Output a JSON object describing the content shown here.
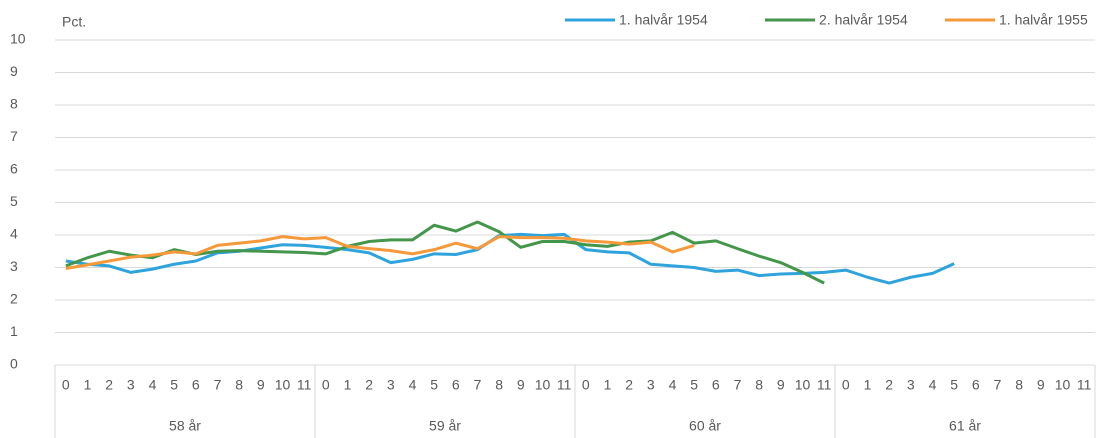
{
  "chart_data": {
    "type": "line",
    "y_label": "Pct.",
    "categories": [
      "0",
      "1",
      "2",
      "3",
      "4",
      "5",
      "6",
      "7",
      "8",
      "9",
      "10",
      "11",
      "0",
      "1",
      "2",
      "3",
      "4",
      "5",
      "6",
      "7",
      "8",
      "9",
      "10",
      "11",
      "0",
      "1",
      "2",
      "3",
      "4",
      "5",
      "6",
      "7",
      "8",
      "9",
      "10",
      "11",
      "0",
      "1",
      "2",
      "3",
      "4",
      "5",
      "6",
      "7",
      "8",
      "9",
      "10",
      "11"
    ],
    "groups": [
      "58 år",
      "59 år",
      "60 år",
      "61 år"
    ],
    "ylim": [
      0,
      10
    ],
    "yticks": [
      0,
      1,
      2,
      3,
      4,
      5,
      6,
      7,
      8,
      9,
      10
    ],
    "grid": true,
    "legend": "top-right",
    "series": [
      {
        "name": "1. halvår 1954",
        "color": "#2ea3dc",
        "values": [
          3.2,
          3.1,
          3.05,
          2.85,
          2.95,
          3.1,
          3.2,
          3.45,
          3.5,
          3.6,
          3.7,
          3.68,
          3.62,
          3.55,
          3.45,
          3.15,
          3.25,
          3.42,
          3.4,
          3.55,
          3.98,
          4.02,
          3.98,
          4.02,
          3.55,
          3.48,
          3.45,
          3.1,
          3.05,
          3.0,
          2.88,
          2.92,
          2.75,
          2.8,
          2.82,
          2.85,
          2.92,
          2.7,
          2.52,
          2.7,
          2.82,
          3.12,
          null,
          null,
          null,
          null,
          null,
          null
        ]
      },
      {
        "name": "2. halvår 1954",
        "color": "#43964a",
        "values": [
          3.05,
          3.3,
          3.5,
          3.38,
          3.3,
          3.55,
          3.4,
          3.5,
          3.52,
          3.5,
          3.48,
          3.46,
          3.42,
          3.65,
          3.8,
          3.85,
          3.85,
          4.3,
          4.12,
          4.4,
          4.1,
          3.62,
          3.8,
          3.8,
          3.7,
          3.65,
          3.78,
          3.82,
          4.08,
          3.75,
          3.82,
          3.58,
          3.35,
          3.15,
          2.85,
          2.52,
          null,
          null,
          null,
          null,
          null,
          null,
          null,
          null,
          null,
          null,
          null,
          null
        ]
      },
      {
        "name": "1. halvår 1955",
        "color": "#f5993a",
        "values": [
          2.97,
          3.08,
          3.2,
          3.32,
          3.38,
          3.48,
          3.42,
          3.68,
          3.75,
          3.82,
          3.95,
          3.88,
          3.92,
          3.65,
          3.58,
          3.52,
          3.42,
          3.55,
          3.75,
          3.58,
          3.95,
          3.92,
          3.92,
          3.9,
          3.82,
          3.78,
          3.72,
          3.78,
          3.48,
          3.68,
          null,
          null,
          null,
          null,
          null,
          null,
          null,
          null,
          null,
          null,
          null,
          null,
          null,
          null,
          null,
          null,
          null,
          null
        ]
      }
    ]
  }
}
